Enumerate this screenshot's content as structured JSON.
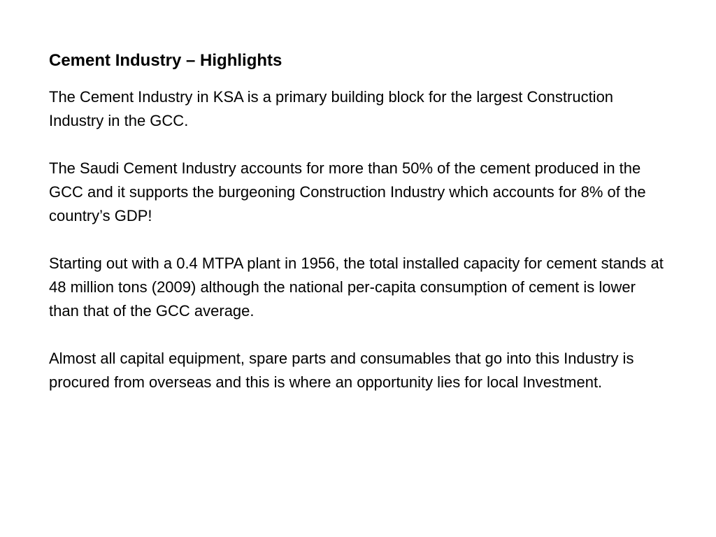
{
  "slide": {
    "title": "Cement Industry – Highlights",
    "paragraphs": [
      "The Cement Industry in KSA is a primary building block for the largest Construction Industry in the GCC.",
      "The Saudi Cement Industry accounts for more than 50% of the cement produced in the GCC and it supports the burgeoning Construction Industry which accounts for 8% of the country’s GDP!",
      "Starting out with a 0.4 MTPA plant in 1956, the total installed capacity for cement stands at 48 million tons (2009) although the national per-capita consumption of cement is lower than that of the GCC average.",
      "Almost all capital equipment, spare parts and consumables that go into this Industry is procured from overseas and this is where an opportunity lies for local Investment."
    ]
  }
}
